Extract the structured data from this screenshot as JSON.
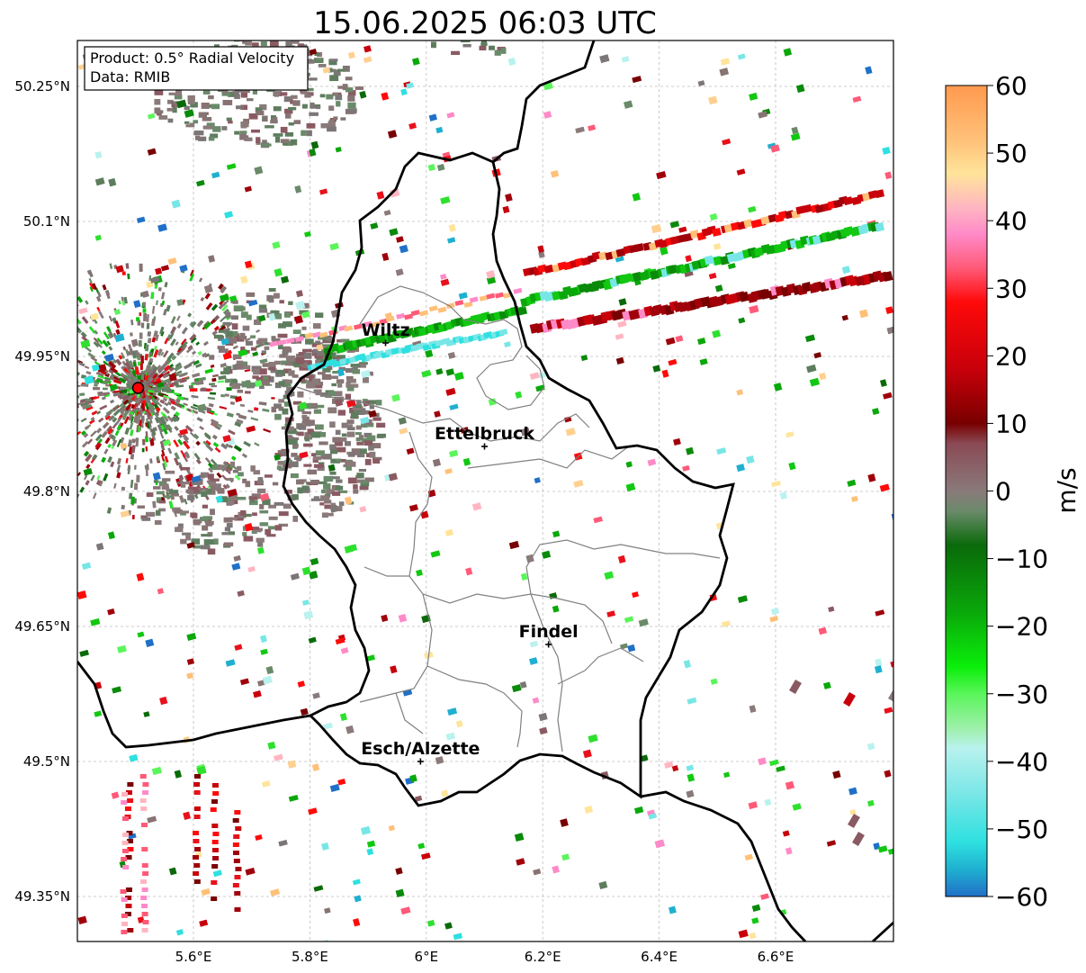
{
  "title": "15.06.2025 06:03 UTC",
  "info_box": {
    "product": "Product: 0.5° Radial Velocity",
    "data_source": "Data: RMIB"
  },
  "axes": {
    "lat_ticks": [
      "50.25°N",
      "50.1°N",
      "49.95°N",
      "49.8°N",
      "49.65°N",
      "49.5°N",
      "49.35°N"
    ],
    "lon_ticks": [
      "5.6°E",
      "5.8°E",
      "6°E",
      "6.2°E",
      "6.4°E",
      "6.6°E"
    ]
  },
  "cities": [
    {
      "name": "Wiltz",
      "lon": 5.93,
      "lat": 49.965
    },
    {
      "name": "Ettelbruck",
      "lon": 6.1,
      "lat": 49.85
    },
    {
      "name": "Findel",
      "lon": 6.21,
      "lat": 49.63
    },
    {
      "name": "Esch/Alzette",
      "lon": 5.99,
      "lat": 49.5
    }
  ],
  "radar_site": {
    "lon": 5.505,
    "lat": 49.915
  },
  "colorbar": {
    "label": "m/s",
    "ticks": [
      "60",
      "50",
      "40",
      "30",
      "20",
      "10",
      "0",
      "−10",
      "−20",
      "−30",
      "−40",
      "−50",
      "−60"
    ],
    "min": -60,
    "max": 60,
    "stops": [
      {
        "v": 60,
        "c": "#ff9a4f"
      },
      {
        "v": 52,
        "c": "#ffc078"
      },
      {
        "v": 47,
        "c": "#ffe49a"
      },
      {
        "v": 42,
        "c": "#ffb6c1"
      },
      {
        "v": 38,
        "c": "#ff8ac8"
      },
      {
        "v": 33,
        "c": "#ff5a78"
      },
      {
        "v": 28,
        "c": "#ff0a0a"
      },
      {
        "v": 18,
        "c": "#c8000a"
      },
      {
        "v": 10,
        "c": "#780000"
      },
      {
        "v": 7,
        "c": "#8a4a55"
      },
      {
        "v": 0,
        "c": "#8a7a7a"
      },
      {
        "v": -3,
        "c": "#6a8a6a"
      },
      {
        "v": -8,
        "c": "#0a6a0a"
      },
      {
        "v": -18,
        "c": "#0aa80a"
      },
      {
        "v": -26,
        "c": "#0aee0a"
      },
      {
        "v": -30,
        "c": "#5af55a"
      },
      {
        "v": -35,
        "c": "#9cf0a8"
      },
      {
        "v": -38,
        "c": "#b9f2ee"
      },
      {
        "v": -45,
        "c": "#78e6e6"
      },
      {
        "v": -52,
        "c": "#2ee0e0"
      },
      {
        "v": -56,
        "c": "#1fb0d0"
      },
      {
        "v": -60,
        "c": "#2070c8"
      }
    ]
  }
}
